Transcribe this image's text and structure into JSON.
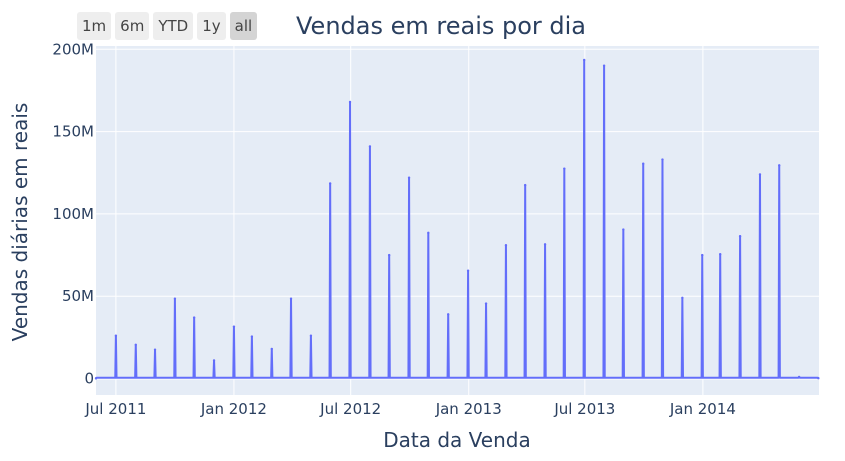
{
  "range_selector": {
    "buttons": [
      {
        "label": "1m",
        "active": false
      },
      {
        "label": "6m",
        "active": false
      },
      {
        "label": "YTD",
        "active": false
      },
      {
        "label": "1y",
        "active": false
      },
      {
        "label": "all",
        "active": true
      }
    ]
  },
  "chart_data": {
    "type": "line",
    "title": "Vendas em reais por dia",
    "xlabel": "Data da Venda",
    "ylabel": "Vendas diárias em reais",
    "x_ticks": [
      {
        "date": "2011-07-01",
        "label": "Jul 2011"
      },
      {
        "date": "2012-01-01",
        "label": "Jan 2012"
      },
      {
        "date": "2012-07-01",
        "label": "Jul 2012"
      },
      {
        "date": "2013-01-01",
        "label": "Jan 2013"
      },
      {
        "date": "2013-07-01",
        "label": "Jul 2013"
      },
      {
        "date": "2014-01-01",
        "label": "Jan 2014"
      }
    ],
    "y_ticks": [
      {
        "value": 0,
        "label": "0"
      },
      {
        "value": 50000000,
        "label": "50M"
      },
      {
        "value": 100000000,
        "label": "100M"
      },
      {
        "value": 150000000,
        "label": "150M"
      },
      {
        "value": 200000000,
        "label": "200M"
      }
    ],
    "xlim": [
      "2011-05-31",
      "2014-07-01"
    ],
    "ylim": [
      -10000000,
      202000000
    ],
    "grid": true,
    "line_color": "#636efa",
    "plot_bg": "#e5ecf6",
    "baseline_value": 500000,
    "series": [
      {
        "x": [
          "2011-05-31",
          "2011-07-01",
          "2011-08-01",
          "2011-08-31",
          "2011-10-01",
          "2011-10-31",
          "2011-12-01",
          "2012-01-01",
          "2012-01-29",
          "2012-02-29",
          "2012-03-30",
          "2012-04-30",
          "2012-05-30",
          "2012-06-30",
          "2012-07-31",
          "2012-08-30",
          "2012-09-30",
          "2012-10-30",
          "2012-11-30",
          "2012-12-31",
          "2013-01-28",
          "2013-02-28",
          "2013-03-30",
          "2013-04-30",
          "2013-05-30",
          "2013-06-30",
          "2013-07-31",
          "2013-08-30",
          "2013-09-30",
          "2013-10-30",
          "2013-11-30",
          "2013-12-31",
          "2014-01-28",
          "2014-02-28",
          "2014-03-31",
          "2014-04-30",
          "2014-05-31",
          "2014-06-30"
        ],
        "y": [
          100000,
          26000000,
          20500000,
          17500000,
          48500000,
          37000000,
          11000000,
          31500000,
          25500000,
          18000000,
          48500000,
          26000000,
          118500000,
          168000000,
          141000000,
          75000000,
          122000000,
          88500000,
          39000000,
          65500000,
          45500000,
          81000000,
          117500000,
          81500000,
          127500000,
          193500000,
          190000000,
          90500000,
          130500000,
          133000000,
          49000000,
          75000000,
          75500000,
          86500000,
          124000000,
          129500000,
          1000000,
          200000
        ]
      }
    ]
  }
}
